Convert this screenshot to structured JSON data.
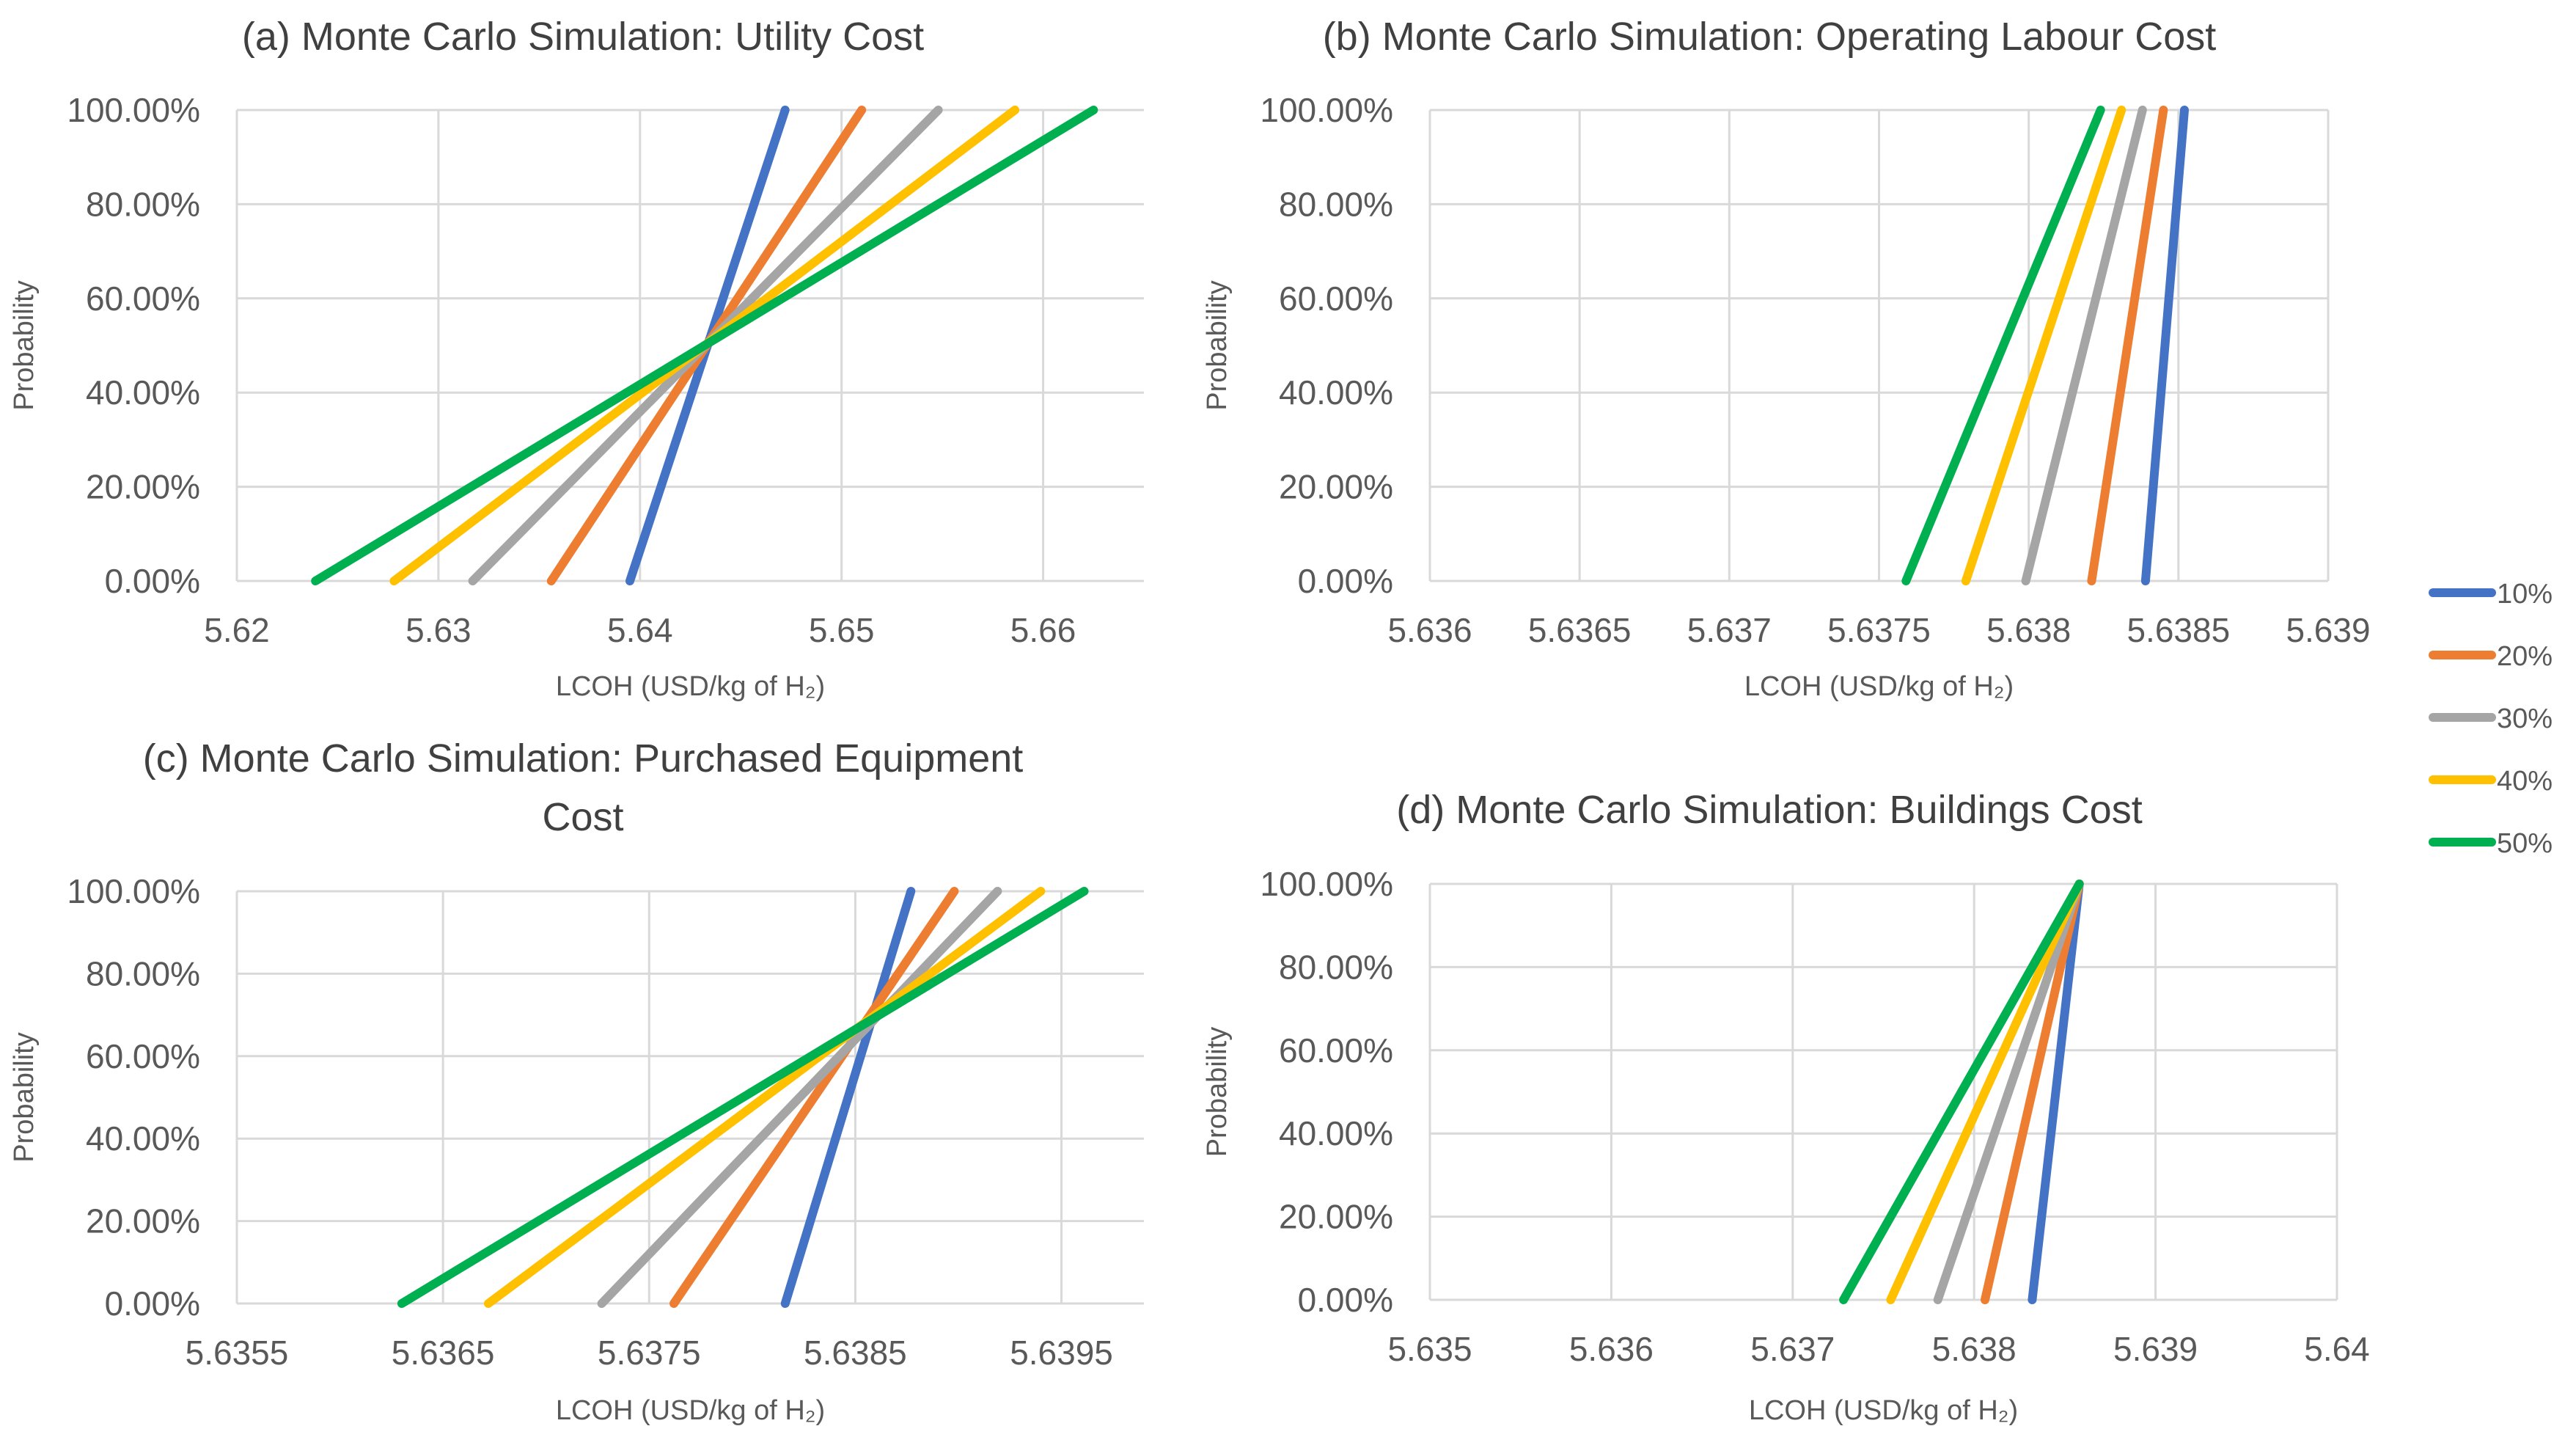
{
  "colors": {
    "10%": "#4472C4",
    "20%": "#ED7D31",
    "30%": "#A5A5A5",
    "40%": "#FFC000",
    "50%": "#00B050"
  },
  "legend": {
    "entries": [
      "10%",
      "20%",
      "30%",
      "40%",
      "50%"
    ],
    "placement": "right"
  },
  "chart_data": [
    {
      "id": "a",
      "type": "line",
      "title": [
        "(a) Monte Carlo Simulation: Utility Cost"
      ],
      "xlabel": "LCOH (USD/kg of H₂)",
      "ylabel": "Probability",
      "xlim": [
        5.62,
        5.665
      ],
      "ylim": [
        0,
        1
      ],
      "xticks": [
        5.62,
        5.63,
        5.64,
        5.65,
        5.66
      ],
      "xtick_labels": [
        "5.62",
        "5.63",
        "5.64",
        "5.65",
        "5.66"
      ],
      "yticks": [
        0,
        0.2,
        0.4,
        0.6,
        0.8,
        1.0
      ],
      "ytick_labels": [
        "0.00%",
        "20.00%",
        "40.00%",
        "60.00%",
        "80.00%",
        "100.00%"
      ],
      "series": [
        {
          "name": "10%",
          "points": [
            [
              5.6395,
              0
            ],
            [
              5.6472,
              1
            ]
          ]
        },
        {
          "name": "20%",
          "points": [
            [
              5.6356,
              0
            ],
            [
              5.651,
              1
            ]
          ]
        },
        {
          "name": "30%",
          "points": [
            [
              5.6317,
              0
            ],
            [
              5.6548,
              1
            ]
          ]
        },
        {
          "name": "40%",
          "points": [
            [
              5.6278,
              0
            ],
            [
              5.6586,
              1
            ]
          ]
        },
        {
          "name": "50%",
          "points": [
            [
              5.6239,
              0
            ],
            [
              5.6625,
              1
            ]
          ]
        }
      ]
    },
    {
      "id": "b",
      "type": "line",
      "title": [
        "(b) Monte Carlo Simulation: Operating Labour Cost"
      ],
      "xlabel": "LCOH (USD/kg of H₂)",
      "ylabel": "Probability",
      "xlim": [
        5.636,
        5.639
      ],
      "ylim": [
        0,
        1
      ],
      "xticks": [
        5.636,
        5.6365,
        5.637,
        5.6375,
        5.638,
        5.6385,
        5.639
      ],
      "xtick_labels": [
        "5.636",
        "5.6365",
        "5.637",
        "5.6375",
        "5.638",
        "5.6385",
        "5.639"
      ],
      "yticks": [
        0,
        0.2,
        0.4,
        0.6,
        0.8,
        1.0
      ],
      "ytick_labels": [
        "0.00%",
        "20.00%",
        "40.00%",
        "60.00%",
        "80.00%",
        "100.00%"
      ],
      "series": [
        {
          "name": "10%",
          "points": [
            [
              5.63839,
              0
            ],
            [
              5.63852,
              1
            ]
          ]
        },
        {
          "name": "20%",
          "points": [
            [
              5.63821,
              0
            ],
            [
              5.63845,
              1
            ]
          ]
        },
        {
          "name": "30%",
          "points": [
            [
              5.63799,
              0
            ],
            [
              5.63838,
              1
            ]
          ]
        },
        {
          "name": "40%",
          "points": [
            [
              5.63779,
              0
            ],
            [
              5.63831,
              1
            ]
          ]
        },
        {
          "name": "50%",
          "points": [
            [
              5.63759,
              0
            ],
            [
              5.63824,
              1
            ]
          ]
        }
      ]
    },
    {
      "id": "c",
      "type": "line",
      "title": [
        "(c) Monte Carlo Simulation: Purchased Equipment",
        "Cost"
      ],
      "xlabel": "LCOH (USD/kg of H₂)",
      "ylabel": "Probability",
      "xlim": [
        5.6355,
        5.6399
      ],
      "ylim": [
        0,
        1
      ],
      "xticks": [
        5.6355,
        5.6365,
        5.6375,
        5.6385,
        5.6395
      ],
      "xtick_labels": [
        "5.6355",
        "5.6365",
        "5.6375",
        "5.6385",
        "5.6395"
      ],
      "yticks": [
        0,
        0.2,
        0.4,
        0.6,
        0.8,
        1.0
      ],
      "ytick_labels": [
        "0.00%",
        "20.00%",
        "40.00%",
        "60.00%",
        "80.00%",
        "100.00%"
      ],
      "series": [
        {
          "name": "10%",
          "points": [
            [
              5.63816,
              0
            ],
            [
              5.63877,
              1
            ]
          ]
        },
        {
          "name": "20%",
          "points": [
            [
              5.63762,
              0
            ],
            [
              5.63898,
              1
            ]
          ]
        },
        {
          "name": "30%",
          "points": [
            [
              5.63727,
              0
            ],
            [
              5.63919,
              1
            ]
          ]
        },
        {
          "name": "40%",
          "points": [
            [
              5.63672,
              0
            ],
            [
              5.6394,
              1
            ]
          ]
        },
        {
          "name": "50%",
          "points": [
            [
              5.6363,
              0
            ],
            [
              5.63961,
              1
            ]
          ]
        }
      ]
    },
    {
      "id": "d",
      "type": "line",
      "title": [
        "(d) Monte Carlo Simulation: Buildings Cost"
      ],
      "xlabel": "LCOH (USD/kg of H₂)",
      "ylabel": "Probability",
      "xlim": [
        5.635,
        5.64
      ],
      "ylim": [
        0,
        1
      ],
      "xticks": [
        5.635,
        5.636,
        5.637,
        5.638,
        5.639,
        5.64
      ],
      "xtick_labels": [
        "5.635",
        "5.636",
        "5.637",
        "5.638",
        "5.639",
        "5.64"
      ],
      "yticks": [
        0,
        0.2,
        0.4,
        0.6,
        0.8,
        1.0
      ],
      "ytick_labels": [
        "0.00%",
        "20.00%",
        "40.00%",
        "60.00%",
        "80.00%",
        "100.00%"
      ],
      "series": [
        {
          "name": "10%",
          "points": [
            [
              5.63832,
              0
            ],
            [
              5.63858,
              1
            ]
          ]
        },
        {
          "name": "20%",
          "points": [
            [
              5.63806,
              0
            ],
            [
              5.63858,
              1
            ]
          ]
        },
        {
          "name": "30%",
          "points": [
            [
              5.6378,
              0
            ],
            [
              5.63858,
              1
            ]
          ]
        },
        {
          "name": "40%",
          "points": [
            [
              5.63754,
              0
            ],
            [
              5.63858,
              1
            ]
          ]
        },
        {
          "name": "50%",
          "points": [
            [
              5.63728,
              0
            ],
            [
              5.63858,
              1
            ]
          ]
        }
      ]
    }
  ]
}
